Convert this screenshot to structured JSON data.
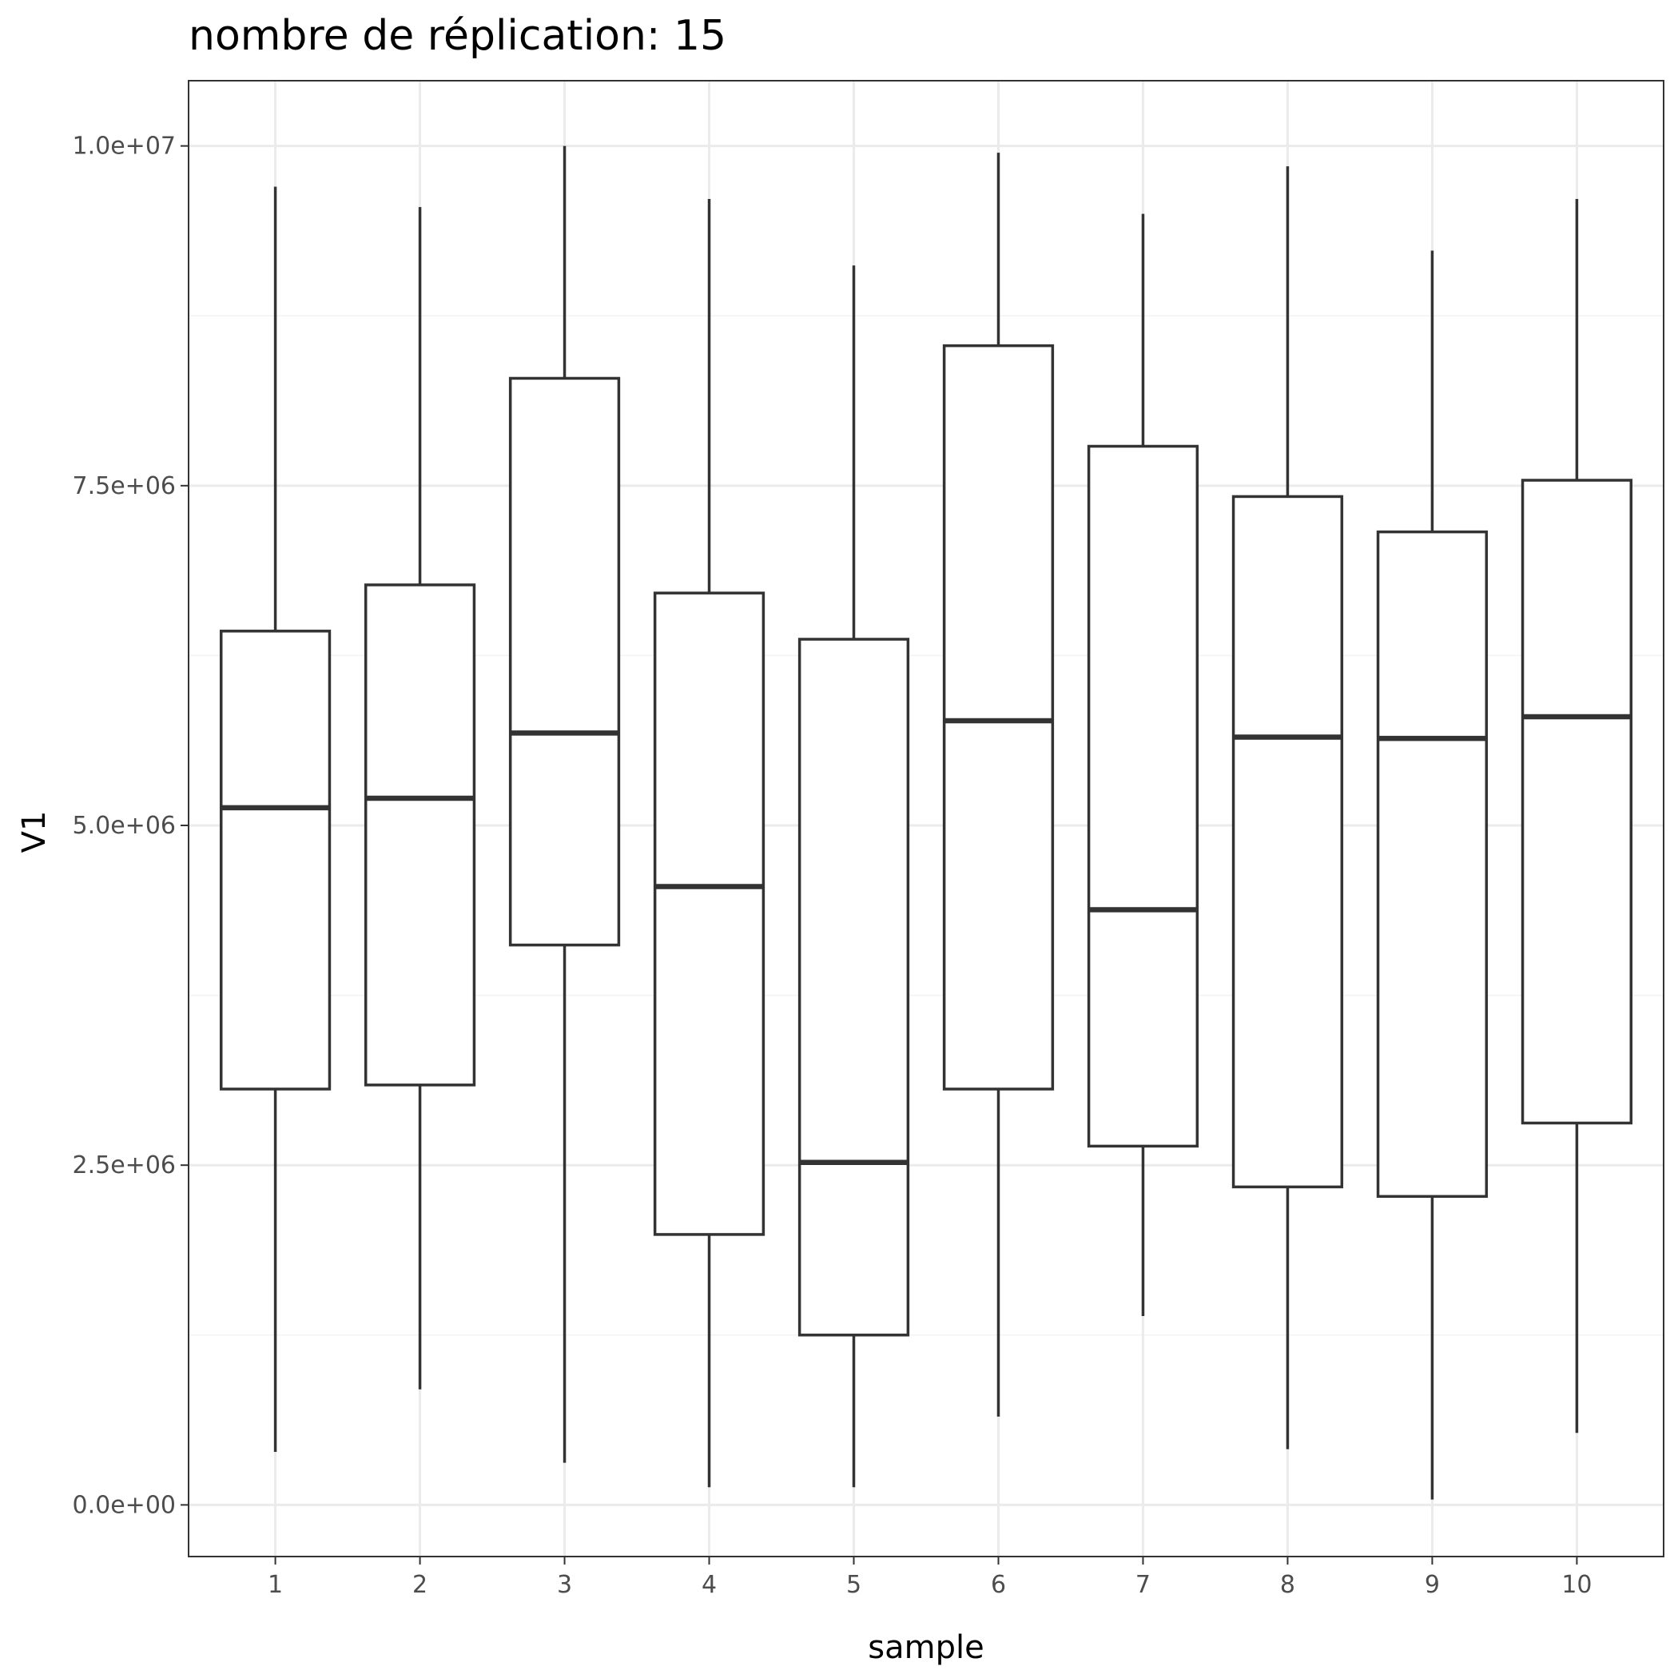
{
  "chart_data": {
    "type": "boxplot",
    "title": "nombre de réplication: 15",
    "xlabel": "sample",
    "ylabel": "V1",
    "categories": [
      "1",
      "2",
      "3",
      "4",
      "5",
      "6",
      "7",
      "8",
      "9",
      "10"
    ],
    "ylim": [
      -380000,
      10480000
    ],
    "yticks": [
      {
        "value": 0,
        "label": "0.0e+00"
      },
      {
        "value": 2500000,
        "label": "2.5e+06"
      },
      {
        "value": 5000000,
        "label": "5.0e+06"
      },
      {
        "value": 7500000,
        "label": "7.5e+06"
      },
      {
        "value": 10000000,
        "label": "1.0e+07"
      }
    ],
    "minor_grid": [
      1250000,
      3750000,
      6250000,
      8750000
    ],
    "grid": true,
    "legend": "none",
    "boxes": [
      {
        "category": "1",
        "min": 390000,
        "q1": 3060000,
        "median": 5130000,
        "q3": 6430000,
        "max": 9700000
      },
      {
        "category": "2",
        "min": 850000,
        "q1": 3090000,
        "median": 5200000,
        "q3": 6770000,
        "max": 9550000
      },
      {
        "category": "3",
        "min": 310000,
        "q1": 4120000,
        "median": 5680000,
        "q3": 8290000,
        "max": 10000000
      },
      {
        "category": "4",
        "min": 130000,
        "q1": 1990000,
        "median": 4550000,
        "q3": 6710000,
        "max": 9610000
      },
      {
        "category": "5",
        "min": 130000,
        "q1": 1250000,
        "median": 2520000,
        "q3": 6370000,
        "max": 9120000
      },
      {
        "category": "6",
        "min": 650000,
        "q1": 3060000,
        "median": 5770000,
        "q3": 8530000,
        "max": 9950000
      },
      {
        "category": "7",
        "min": 1390000,
        "q1": 2640000,
        "median": 4380000,
        "q3": 7790000,
        "max": 9500000
      },
      {
        "category": "8",
        "min": 410000,
        "q1": 2340000,
        "median": 5650000,
        "q3": 7420000,
        "max": 9850000
      },
      {
        "category": "9",
        "min": 40000,
        "q1": 2270000,
        "median": 5640000,
        "q3": 7160000,
        "max": 9230000
      },
      {
        "category": "10",
        "min": 530000,
        "q1": 2810000,
        "median": 5800000,
        "q3": 7540000,
        "max": 9610000
      }
    ],
    "colors": {
      "box_stroke": "#333333",
      "box_fill": "#ffffff",
      "grid_major": "#ebebeb",
      "grid_minor": "#f3f3f3",
      "panel_border": "#333333",
      "tick_label": "#4d4d4d"
    }
  }
}
